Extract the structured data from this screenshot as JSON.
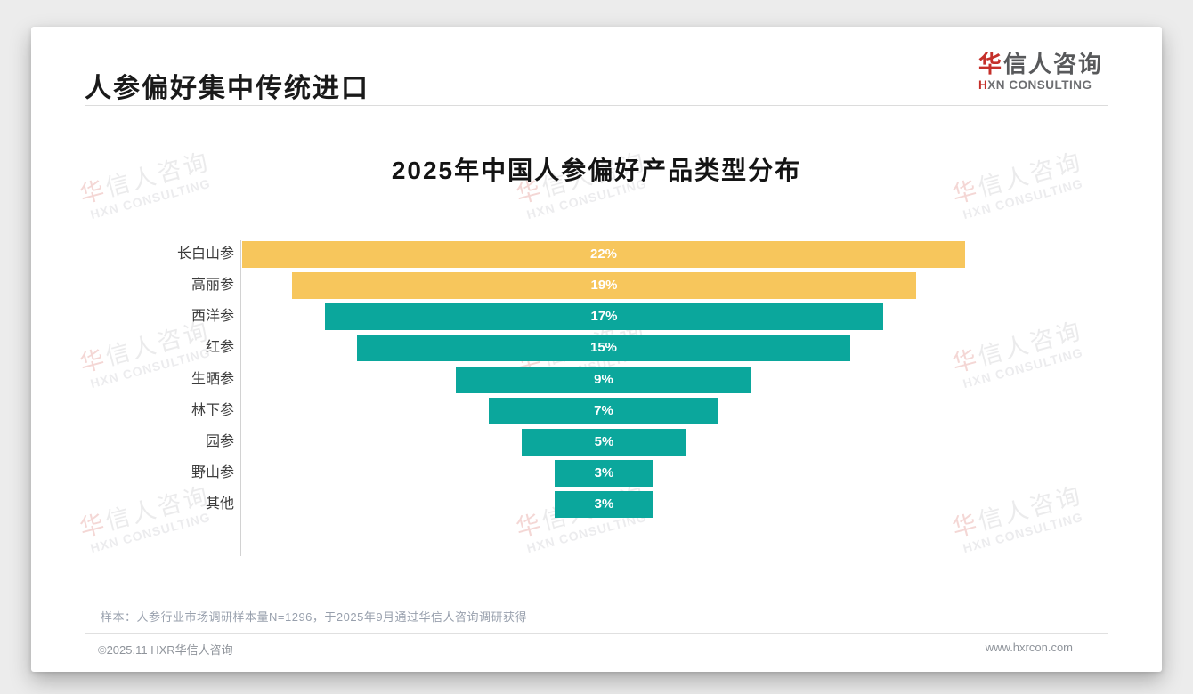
{
  "slide": {
    "header_title": "人参偏好集中传统进口",
    "logo": {
      "cn_accent": "华",
      "cn_rest": "信人咨询",
      "en_accent": "H",
      "en_rest": "XN CONSULTING"
    },
    "watermark": {
      "cn_accent": "华",
      "cn_rest": "信人咨询",
      "en": "HXN CONSULTING"
    },
    "footnote": "样本：人参行业市场调研样本量N=1296，于2025年9月通过华信人咨询调研获得",
    "footer_left": "©2025.11 HXR华信人咨询",
    "footer_right": "www.hxrcon.com"
  },
  "chart_data": {
    "type": "bar",
    "subtype": "horizontal-centered-funnel",
    "title": "2025年中国人参偏好产品类型分布",
    "categories": [
      "长白山参",
      "高丽参",
      "西洋参",
      "红参",
      "生晒参",
      "林下参",
      "园参",
      "野山参",
      "其他"
    ],
    "values": [
      22,
      19,
      17,
      15,
      9,
      7,
      5,
      3,
      3
    ],
    "value_labels": [
      "22%",
      "19%",
      "17%",
      "15%",
      "9%",
      "7%",
      "5%",
      "3%",
      "3%"
    ],
    "bar_colors": [
      "#F7C65C",
      "#F7C65C",
      "#0BA79C",
      "#0BA79C",
      "#0BA79C",
      "#0BA79C",
      "#0BA79C",
      "#0BA79C",
      "#0BA79C"
    ],
    "unit": "%",
    "xlabel": "",
    "ylabel": "",
    "xlim": [
      0,
      22
    ],
    "legend": "none",
    "grid": false,
    "data_label_position": "center",
    "data_label_color": "#ffffff",
    "highlight_color": "#F7C65C",
    "base_color": "#0BA79C"
  },
  "colors": {
    "accent_red": "#C5302A",
    "bar_yellow": "#F7C65C",
    "bar_teal": "#0BA79C",
    "title_text": "#1A1A1A",
    "muted_text": "#98A0AD",
    "axis_line": "#D2D2D2"
  }
}
